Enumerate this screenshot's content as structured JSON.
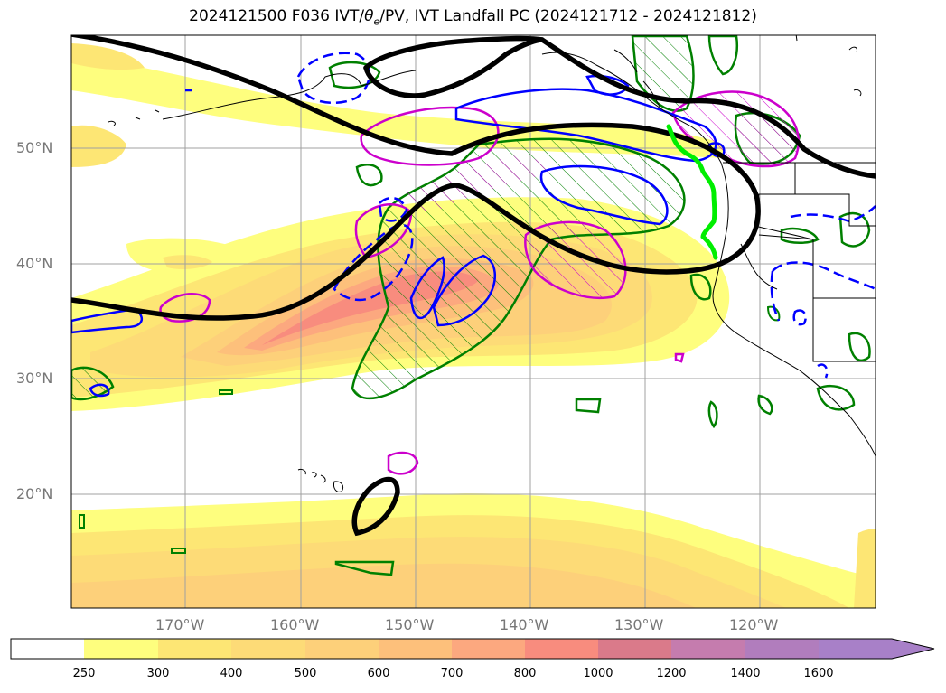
{
  "title_pre": "2024121500 F036 IVT/",
  "title_theta": "θ",
  "title_sub": "e",
  "title_post": "/PV, IVT Landfall PC (2024121712 - 2024121812)",
  "map": {
    "lat_labels": [
      "50°N",
      "40°N",
      "30°N",
      "20°N"
    ],
    "lon_labels": [
      "170°W",
      "160°W",
      "150°W",
      "140°W",
      "130°W",
      "120°W"
    ]
  },
  "colorbar": {
    "ticks": [
      "250",
      "300",
      "400",
      "500",
      "600",
      "700",
      "800",
      "1000",
      "1200",
      "1400",
      "1600"
    ],
    "colors": [
      "#ffffff",
      "#fefe7e",
      "#fde674",
      "#fddb77",
      "#fdd07a",
      "#fdc07b",
      "#fca87f",
      "#f88c7e",
      "#da7a8a",
      "#c57cae",
      "#b17dbd",
      "#a880c8"
    ]
  },
  "legend_colors": {
    "pv_contour": "#0000ff",
    "theta_contour": "#cc00cc",
    "pc_hatch": "#008000",
    "z_contour": "#000000",
    "landfall": "#00ee00"
  }
}
